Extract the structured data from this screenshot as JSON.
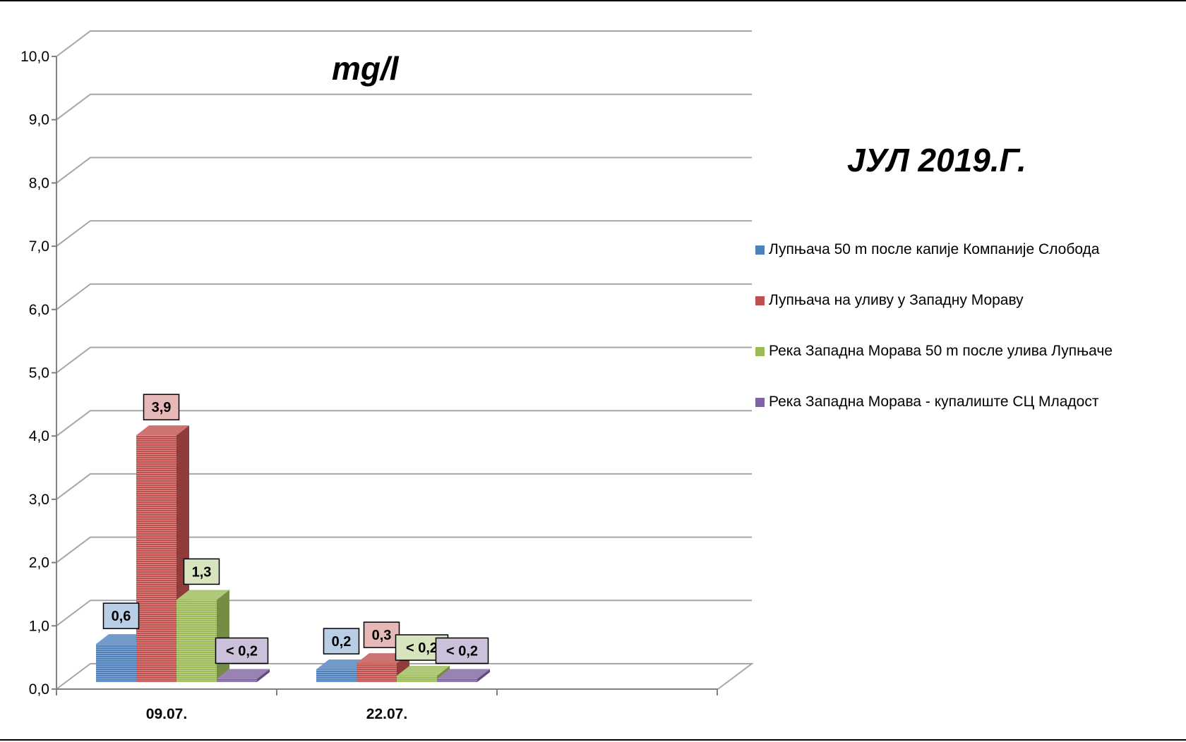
{
  "chart_data": {
    "type": "bar",
    "title": "mg/l",
    "subtitle": "ЈУЛ 2019.Г.",
    "categories": [
      "09.07.",
      "22.07."
    ],
    "ylim": [
      0,
      10
    ],
    "yticks": [
      "0,0",
      "1,0",
      "2,0",
      "3,0",
      "4,0",
      "5,0",
      "6,0",
      "7,0",
      "8,0",
      "9,0",
      "10,0"
    ],
    "grid": true,
    "legend_position": "right",
    "series": [
      {
        "name": "Лупњача 50 m после капије Компаније Слобода",
        "color": "#4f81bd",
        "values": [
          0.6,
          0.2
        ],
        "labels": [
          "0,6",
          "0,2"
        ]
      },
      {
        "name": "Лупњача на уливу у Западну Мораву",
        "color": "#c0504d",
        "values": [
          3.9,
          0.3
        ],
        "labels": [
          "3,9",
          "0,3"
        ]
      },
      {
        "name": "Река Западна Морава 50 m после улива Лупњаче",
        "color": "#9bbb59",
        "values": [
          1.3,
          0.1
        ],
        "labels": [
          "1,3",
          "< 0,2"
        ]
      },
      {
        "name": "Река Западна Морава - купалиште СЦ Младост",
        "color": "#8064a2",
        "values": [
          0.05,
          0.05
        ],
        "labels": [
          "< 0,2",
          "< 0,2"
        ]
      }
    ]
  }
}
